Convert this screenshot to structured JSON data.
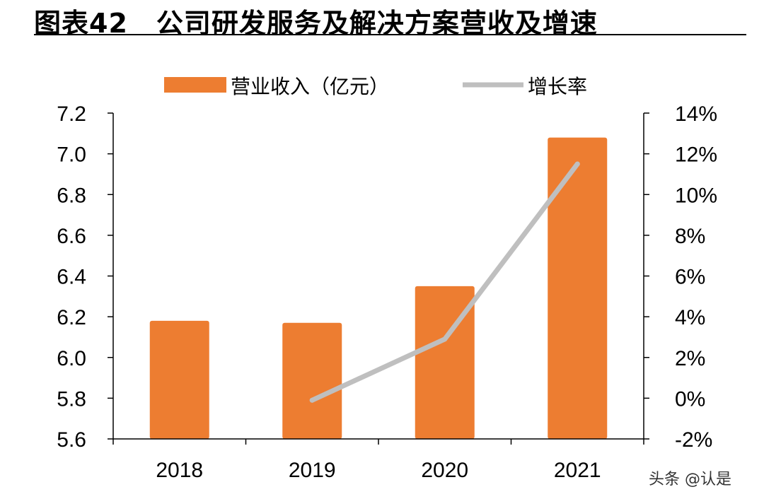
{
  "header": {
    "figure_label": "图表42",
    "title": "公司研发服务及解决方案营收及增速"
  },
  "legend": {
    "bar_label": "营业收入（亿元）",
    "line_label": "增长率"
  },
  "watermark": {
    "text": "头条 @认是",
    "icon": "wechat-bubble-icon"
  },
  "colors": {
    "bar": "#ED7D31",
    "line": "#BFBFBF",
    "axis": "#000000"
  },
  "chart_data": {
    "type": "bar",
    "categories": [
      "2018",
      "2019",
      "2020",
      "2021"
    ],
    "series": [
      {
        "name": "营业收入（亿元）",
        "type": "bar",
        "axis": "left",
        "values": [
          6.18,
          6.17,
          6.35,
          7.08
        ]
      },
      {
        "name": "增长率",
        "type": "line",
        "axis": "right",
        "values": [
          null,
          -0.1,
          2.9,
          11.5
        ]
      }
    ],
    "y_left": {
      "ylim": [
        5.6,
        7.2
      ],
      "ticks": [
        "5.6",
        "5.8",
        "6.0",
        "6.2",
        "6.4",
        "6.6",
        "6.8",
        "7.0",
        "7.2"
      ]
    },
    "y_right": {
      "ylim": [
        -2,
        14
      ],
      "ticks": [
        "-2%",
        "0%",
        "2%",
        "4%",
        "6%",
        "8%",
        "10%",
        "12%",
        "14%"
      ]
    },
    "grid": false,
    "legend_position": "top"
  }
}
